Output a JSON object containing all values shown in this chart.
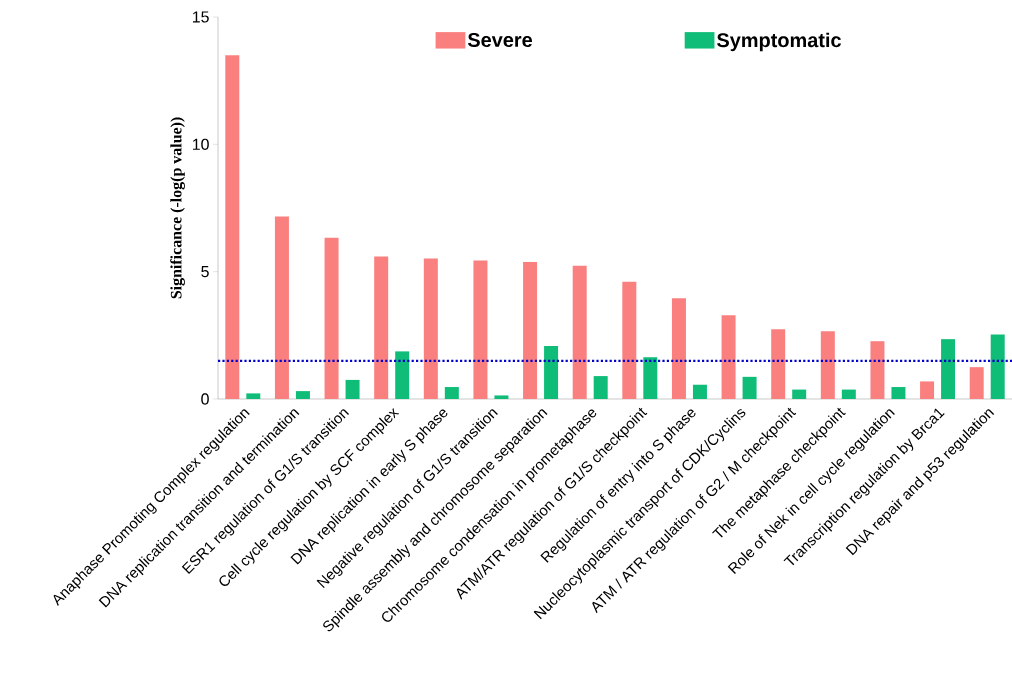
{
  "chart_data": {
    "type": "bar",
    "ylabel": "Significance (-log(p value))",
    "categories": [
      "Anaphase Promoting Complex regulation",
      "DNA replication transition and termination",
      "ESR1 regulation of G1/S transition",
      "Cell cycle regulation by SCF complex",
      "DNA replication in early S phase",
      "Negative regulation of G1/S transition",
      "Spindle assembly and chromosome separation",
      "Chromosome condensation in prometaphase",
      "ATM/ATR regulation of G1/S checkpoint",
      "Regulation of entry into S phase",
      "Nucleocytoplasmic transport of CDK/Cyclins",
      "ATM / ATR regulation of G2 / M checkpoint",
      "The metaphase checkpoint",
      "Role of Nek in cell cycle regulation",
      "Transcription regulation by Brca1",
      "DNA repair and  p53 regulation"
    ],
    "series": [
      {
        "name": "Severe",
        "color": "#fa7f7f",
        "values": [
          13.5,
          7.17,
          6.33,
          5.6,
          5.52,
          5.44,
          5.38,
          5.23,
          4.6,
          3.96,
          3.29,
          2.74,
          2.66,
          2.27,
          0.69,
          1.25
        ]
      },
      {
        "name": "Symptomatic",
        "color": "#10bd78",
        "values": [
          0.22,
          0.31,
          0.75,
          1.87,
          0.47,
          0.14,
          2.08,
          0.9,
          1.64,
          0.56,
          0.87,
          0.37,
          0.37,
          0.47,
          2.35,
          2.53
        ]
      }
    ],
    "ylim": [
      0,
      15
    ],
    "yticks": [
      0,
      5,
      10,
      15
    ],
    "ref_lines": [
      {
        "axis": "y",
        "value": 1.5,
        "color": "#0000cc",
        "line_style": "dotted"
      }
    ],
    "legend": "top"
  }
}
